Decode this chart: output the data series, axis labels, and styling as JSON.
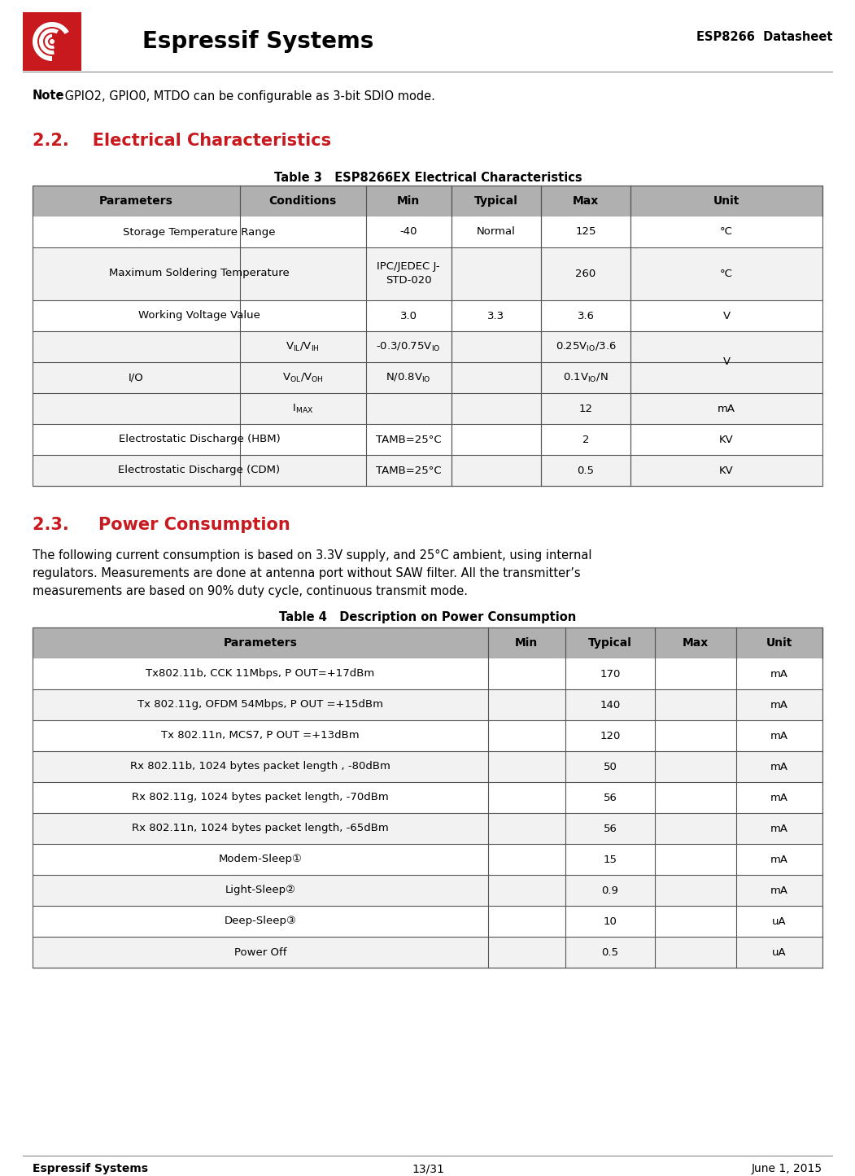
{
  "page_bg": "#ffffff",
  "logo_red": "#c8191e",
  "header_text": "ESP8266  Datasheet",
  "company_name": "Espressif Systems",
  "section22_title": "2.2.    Electrical Characteristics",
  "section22_color": "#c8191e",
  "table3_caption": "Table 3   ESP8266EX Electrical Characteristics",
  "table3_header": [
    "Parameters",
    "Conditions",
    "Min",
    "Typical",
    "Max",
    "Unit"
  ],
  "table3_header_bg": "#b0b0b0",
  "table4_header_bg": "#b0b0b0",
  "section23_title": "2.3.     Power Consumption",
  "section23_color": "#c8191e",
  "power_text_line1": "The following current consumption is based on 3.3V supply, and 25°C ambient, using internal",
  "power_text_line2": "regulators. Measurements are done at antenna port without SAW filter. All the transmitter’s",
  "power_text_line3": "measurements are based on 90% duty cycle, continuous transmit mode.",
  "table4_caption": "Table 4   Description on Power Consumption",
  "table4_header": [
    "Parameters",
    "Min",
    "Typical",
    "Max",
    "Unit"
  ],
  "footer_left": "Espressif Systems",
  "footer_center": "13/31",
  "footer_right": "June 1, 2015",
  "border_color": "#555555",
  "alt_row_bg": "#f0f0f0"
}
